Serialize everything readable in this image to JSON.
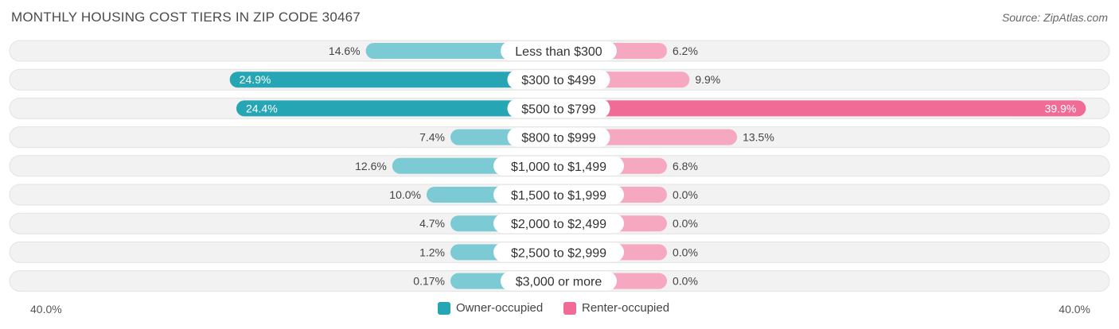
{
  "title": "MONTHLY HOUSING COST TIERS IN ZIP CODE 30467",
  "source": "Source: ZipAtlas.com",
  "axis": {
    "left_label": "40.0%",
    "right_label": "40.0%"
  },
  "legend": {
    "owner_label": "Owner-occupied",
    "renter_label": "Renter-occupied"
  },
  "colors": {
    "owner_dark": "#26a5b5",
    "owner_light": "#7ccad4",
    "renter_dark": "#f06b96",
    "renter_light": "#f7a8c1",
    "row_bg": "#f0f0f0",
    "row_border": "#e2e2e2"
  },
  "chart_data": {
    "type": "bar",
    "orientation": "diverging-horizontal",
    "xlim": [
      -40,
      40
    ],
    "categories": [
      "Less than $300",
      "$300 to $499",
      "$500 to $799",
      "$800 to $999",
      "$1,000 to $1,499",
      "$1,500 to $1,999",
      "$2,000 to $2,499",
      "$2,500 to $2,999",
      "$3,000 or more"
    ],
    "series": [
      {
        "name": "Owner-occupied",
        "values": [
          14.6,
          24.9,
          24.4,
          7.4,
          12.6,
          10.0,
          4.7,
          1.2,
          0.17
        ],
        "labels": [
          "14.6%",
          "24.9%",
          "24.4%",
          "7.4%",
          "12.6%",
          "10.0%",
          "4.7%",
          "1.2%",
          "0.17%"
        ]
      },
      {
        "name": "Renter-occupied",
        "values": [
          6.2,
          9.9,
          39.9,
          13.5,
          6.8,
          0.0,
          0.0,
          0.0,
          0.0
        ],
        "labels": [
          "6.2%",
          "9.9%",
          "39.9%",
          "13.5%",
          "6.8%",
          "0.0%",
          "0.0%",
          "0.0%",
          "0.0%"
        ]
      }
    ]
  }
}
